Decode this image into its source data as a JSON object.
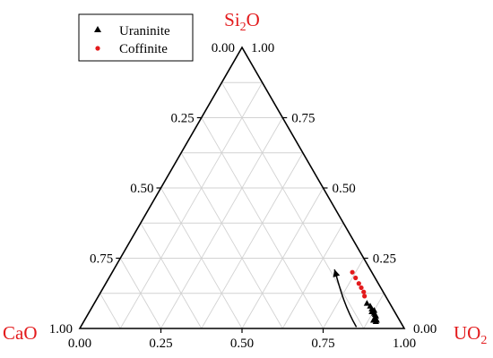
{
  "chart_data": {
    "type": "scatter",
    "subtype": "ternary",
    "vertices": {
      "top": {
        "base": "Si",
        "sub": "2",
        "tail": "O"
      },
      "left": {
        "base": "CaO",
        "sub": "",
        "tail": ""
      },
      "right": {
        "base": "UO",
        "sub": "2",
        "tail": ""
      }
    },
    "ticks": {
      "bottom": [
        "0.00",
        "0.25",
        "0.50",
        "0.75",
        "1.00"
      ],
      "left": [
        "0.00",
        "0.25",
        "0.50",
        "0.75",
        "1.00"
      ],
      "right": [
        "1.00",
        "0.75",
        "0.50",
        "0.25",
        "0.00"
      ]
    },
    "grid_step": 0.125,
    "grid": true,
    "legend": {
      "position": "top-left",
      "entries": [
        {
          "label": "Uraninite",
          "marker": "triangle",
          "color": "#000000"
        },
        {
          "label": "Coffinite",
          "marker": "circle",
          "color": "#e31a1c"
        }
      ]
    },
    "series": [
      {
        "name": "Uraninite",
        "marker": "triangle",
        "color": "#000000",
        "points": [
          {
            "sio2": 0.09,
            "uo2": 0.84
          },
          {
            "sio2": 0.08,
            "uo2": 0.855
          },
          {
            "sio2": 0.07,
            "uo2": 0.865
          },
          {
            "sio2": 0.065,
            "uo2": 0.875
          },
          {
            "sio2": 0.06,
            "uo2": 0.87
          },
          {
            "sio2": 0.055,
            "uo2": 0.88
          },
          {
            "sio2": 0.05,
            "uo2": 0.885
          },
          {
            "sio2": 0.045,
            "uo2": 0.89
          },
          {
            "sio2": 0.04,
            "uo2": 0.89
          },
          {
            "sio2": 0.035,
            "uo2": 0.895
          },
          {
            "sio2": 0.03,
            "uo2": 0.9
          },
          {
            "sio2": 0.03,
            "uo2": 0.89
          },
          {
            "sio2": 0.025,
            "uo2": 0.9
          }
        ]
      },
      {
        "name": "Coffinite",
        "marker": "circle",
        "color": "#e31a1c",
        "points": [
          {
            "sio2": 0.2,
            "uo2": 0.74
          },
          {
            "sio2": 0.18,
            "uo2": 0.76
          },
          {
            "sio2": 0.16,
            "uo2": 0.78
          },
          {
            "sio2": 0.145,
            "uo2": 0.795
          },
          {
            "sio2": 0.13,
            "uo2": 0.81
          },
          {
            "sio2": 0.115,
            "uo2": 0.82
          }
        ]
      }
    ],
    "trend_arrow": {
      "color": "#000000",
      "path": [
        {
          "sio2": 0.005,
          "uo2": 0.85
        },
        {
          "sio2": 0.08,
          "uo2": 0.775
        },
        {
          "sio2": 0.15,
          "uo2": 0.725
        },
        {
          "sio2": 0.21,
          "uo2": 0.68
        }
      ]
    }
  }
}
